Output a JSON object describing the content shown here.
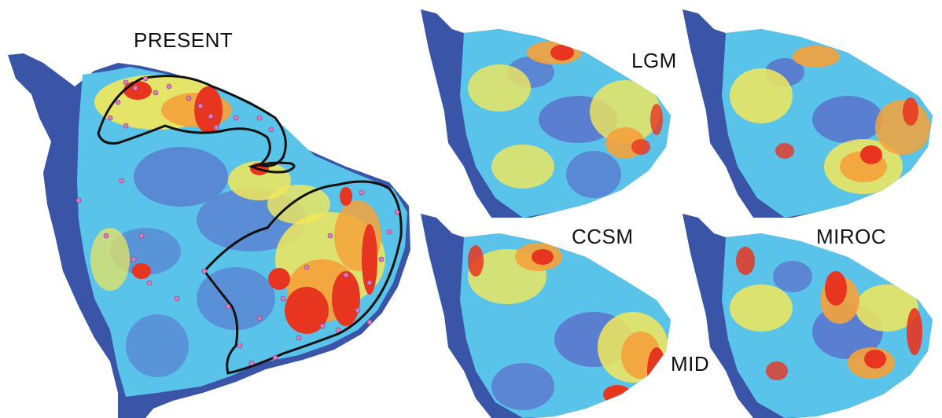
{
  "figure": {
    "labels": {
      "present": "PRESENT",
      "lgm": "LGM",
      "mid": "MID",
      "ccsm": "CCSM",
      "miroc": "MIROC"
    },
    "colors": {
      "background": "#ffffff",
      "land_mask": "#3a55a8",
      "low": "#5a7fd0",
      "mid_low": "#59c3ea",
      "mid": "#f2e85a",
      "mid_high": "#f5a23a",
      "high": "#e8351f",
      "occurrence_points": "#e07bb8",
      "range_outline": "#111111"
    }
  }
}
